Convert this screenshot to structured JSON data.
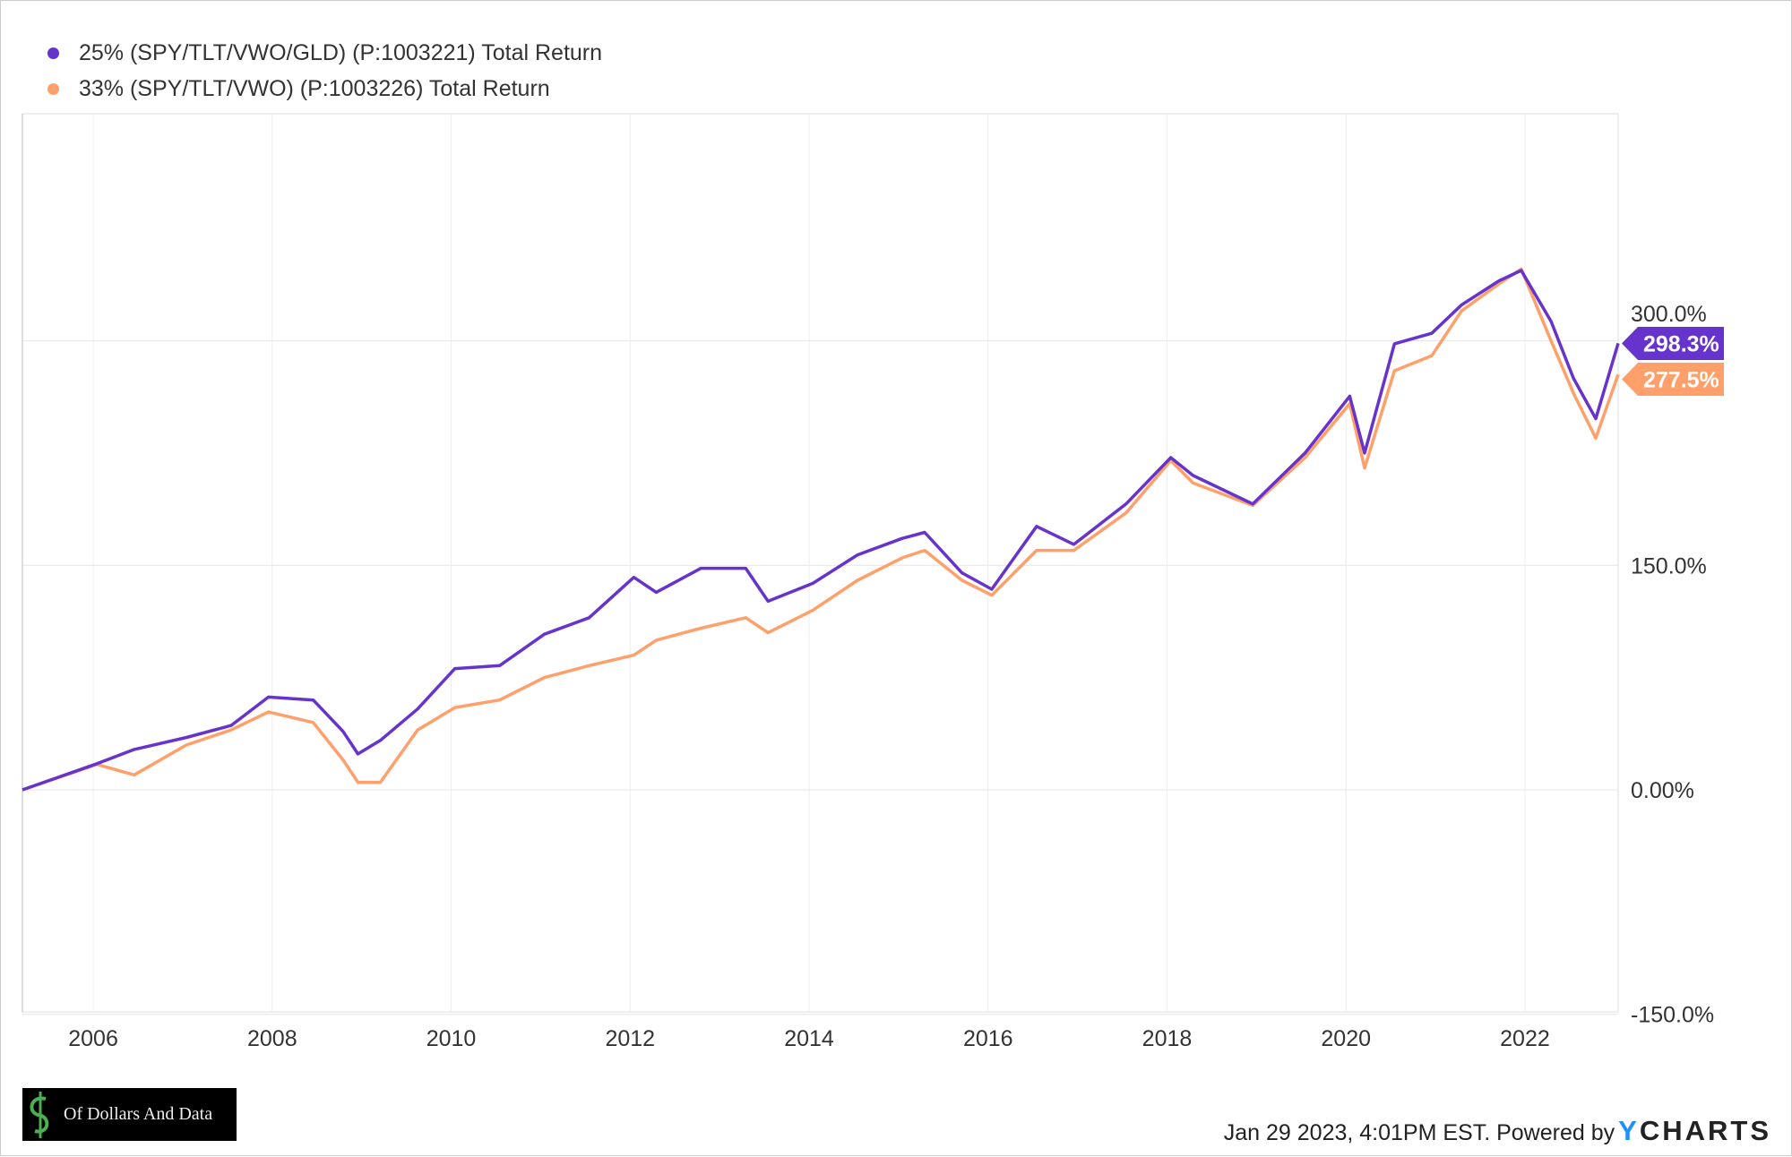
{
  "chart_data": {
    "type": "line",
    "title": "",
    "xlabel": "",
    "ylabel": "",
    "x_ticks": [
      "2006",
      "2008",
      "2010",
      "2012",
      "2014",
      "2016",
      "2018",
      "2020",
      "2022"
    ],
    "y_ticks": [
      "300.0%",
      "150.0%",
      "0.00%",
      "-150.0%"
    ],
    "y_tick_values": [
      300,
      150,
      0,
      -150
    ],
    "ylim": [
      -150,
      450
    ],
    "xlim": [
      "2005-03",
      "2023-01"
    ],
    "grid": true,
    "legend_placement": "top-left",
    "x": [
      "2005-03",
      "2006-01",
      "2006-06",
      "2007-01",
      "2007-07",
      "2007-12",
      "2008-06",
      "2008-10",
      "2008-12",
      "2009-03",
      "2009-08",
      "2010-01",
      "2010-07",
      "2011-01",
      "2011-07",
      "2012-01",
      "2012-04",
      "2012-10",
      "2013-04",
      "2013-07",
      "2014-01",
      "2014-07",
      "2015-01",
      "2015-04",
      "2015-09",
      "2016-01",
      "2016-07",
      "2016-12",
      "2017-07",
      "2018-01",
      "2018-04",
      "2018-12",
      "2019-07",
      "2020-01",
      "2020-03",
      "2020-07",
      "2020-12",
      "2021-04",
      "2021-09",
      "2021-12",
      "2022-04",
      "2022-07",
      "2022-10",
      "2023-01"
    ],
    "series": [
      {
        "name": "25% (SPY/TLT/VWO/GLD) (P:1003221) Total Return",
        "color": "#6633cc",
        "end_label": "298.3%",
        "values": [
          0,
          17.5,
          27,
          35,
          43,
          62,
          60,
          39,
          24,
          33,
          54,
          81,
          83,
          104,
          115,
          142,
          132,
          148,
          148,
          126,
          138,
          157,
          168,
          172,
          145,
          134,
          176,
          164,
          191,
          222,
          210,
          191,
          225,
          263,
          225,
          298,
          305,
          324,
          340,
          347,
          313,
          275,
          248,
          298.3
        ]
      },
      {
        "name": "33% (SPY/TLT/VWO) (P:1003226) Total Return",
        "color": "#ffa06b",
        "end_label": "277.5%",
        "values": [
          0,
          17,
          10,
          30,
          40,
          52,
          45,
          20,
          5,
          5,
          40,
          55,
          60,
          75,
          83,
          90,
          100,
          108,
          115,
          105,
          120,
          140,
          155,
          160,
          140,
          130,
          160,
          160,
          185,
          220,
          205,
          190,
          222,
          258,
          215,
          280,
          290,
          320,
          338,
          348,
          300,
          265,
          235,
          277.5
        ]
      }
    ]
  },
  "footer": {
    "timestamp": "Jan 29 2023, 4:01PM EST. Powered by",
    "brand_y": "Y",
    "brand_rest": "CHARTS"
  },
  "logo": {
    "text": "Of Dollars And Data"
  }
}
